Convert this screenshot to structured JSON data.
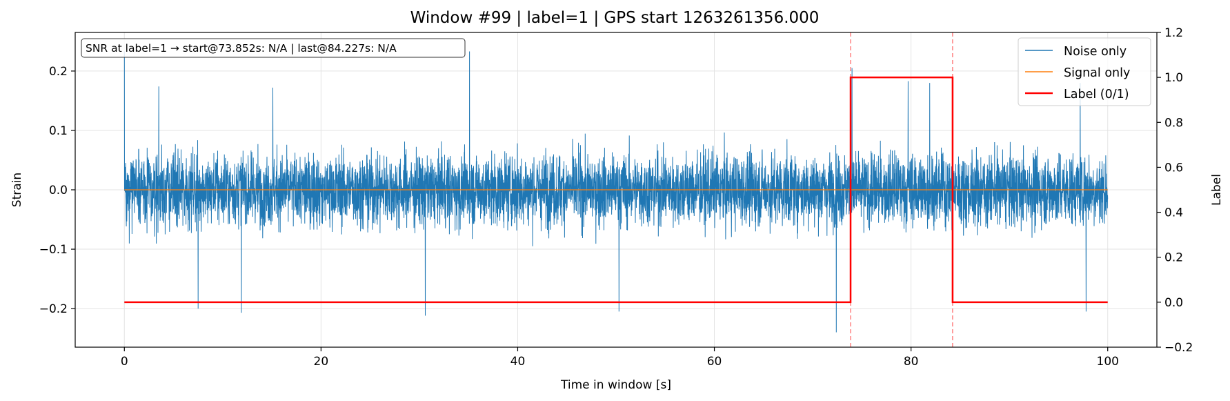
{
  "chart_data": {
    "type": "line",
    "title": "Window #99  |  label=1  |  GPS start 1263261356.000",
    "xlabel": "Time in window [s]",
    "ylabel": "Strain",
    "y2label": "Label",
    "xlim": [
      -5,
      105
    ],
    "ylim": [
      -0.265,
      0.265
    ],
    "y2lim": [
      -0.2,
      1.2
    ],
    "x_ticks": [
      0,
      20,
      40,
      60,
      80,
      100
    ],
    "x_tick_labels": [
      "0",
      "20",
      "40",
      "60",
      "80",
      "100"
    ],
    "y_ticks": [
      -0.2,
      -0.1,
      0.0,
      0.1,
      0.2
    ],
    "y_tick_labels": [
      "−0.2",
      "−0.1",
      "0.0",
      "0.1",
      "0.2"
    ],
    "y2_ticks": [
      -0.2,
      0.0,
      0.2,
      0.4,
      0.6,
      0.8,
      1.0,
      1.2
    ],
    "y2_tick_labels": [
      "−0.2",
      "0.0",
      "0.2",
      "0.4",
      "0.6",
      "0.8",
      "1.0",
      "1.2"
    ],
    "grid": true,
    "legend_position": "top-right",
    "annotation": "SNR at label=1 → start@73.852s: N/A | last@84.227s: N/A",
    "vertical_markers": [
      73.852,
      84.227
    ],
    "series": [
      {
        "name": "Noise only",
        "color": "#1f77b4",
        "axis": "left",
        "x_range": [
          0,
          100
        ],
        "envelope_typical": 0.09,
        "notable_points": [
          {
            "x": 0.0,
            "y": 0.233
          },
          {
            "x": 3.5,
            "y": 0.174
          },
          {
            "x": 7.5,
            "y": -0.2
          },
          {
            "x": 11.9,
            "y": -0.207
          },
          {
            "x": 15.1,
            "y": 0.172
          },
          {
            "x": 30.6,
            "y": -0.212
          },
          {
            "x": 35.1,
            "y": 0.233
          },
          {
            "x": 50.3,
            "y": -0.205
          },
          {
            "x": 72.4,
            "y": -0.24
          },
          {
            "x": 74.0,
            "y": 0.205
          },
          {
            "x": 79.7,
            "y": 0.183
          },
          {
            "x": 81.9,
            "y": 0.18
          },
          {
            "x": 97.8,
            "y": -0.205
          },
          {
            "x": 97.2,
            "y": 0.18
          }
        ]
      },
      {
        "name": "Signal only",
        "color": "#ff7f0e",
        "axis": "left",
        "x": [
          0,
          100
        ],
        "y": [
          0,
          0
        ]
      },
      {
        "name": "Label (0/1)",
        "color": "#ff0000",
        "axis": "right",
        "x": [
          0,
          73.852,
          73.852,
          84.227,
          84.227,
          100
        ],
        "y": [
          0,
          0,
          1,
          1,
          0,
          0
        ]
      }
    ]
  }
}
